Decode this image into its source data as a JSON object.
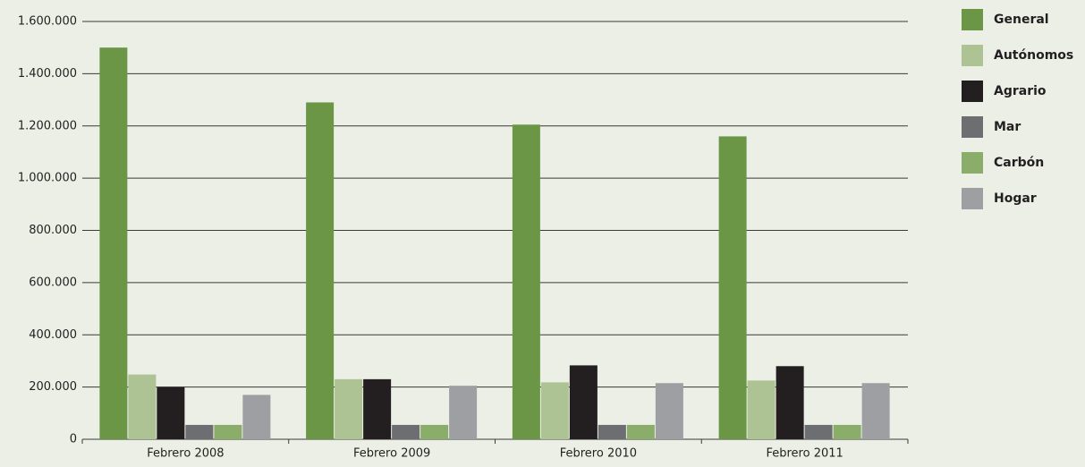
{
  "chart_data": {
    "type": "bar",
    "categories": [
      "Febrero 2008",
      "Febrero 2009",
      "Febrero 2010",
      "Febrero 2011"
    ],
    "series": [
      {
        "name": "General",
        "color": "#6a9646",
        "values": [
          1500000,
          1290000,
          1205000,
          1160000
        ]
      },
      {
        "name": "Autónomos",
        "color": "#adc393",
        "values": [
          248000,
          230000,
          218000,
          225000
        ]
      },
      {
        "name": "Agrario",
        "color": "#231f20",
        "values": [
          200000,
          230000,
          283000,
          280000
        ]
      },
      {
        "name": "Mar",
        "color": "#6d6e71",
        "values": [
          55000,
          55000,
          55000,
          55000
        ]
      },
      {
        "name": "Carbón",
        "color": "#8aad6a",
        "values": [
          55000,
          55000,
          55000,
          55000
        ]
      },
      {
        "name": "Hogar",
        "color": "#9d9fa2",
        "values": [
          170000,
          205000,
          215000,
          215000
        ]
      }
    ],
    "ylim": [
      0,
      1600000
    ],
    "yticks": [
      0,
      {
        "value": 200000,
        "label": "200.000"
      },
      {
        "value": 400000,
        "label": "400.000"
      },
      {
        "value": 600000,
        "label": "600.000"
      },
      {
        "value": 800000,
        "label": "800.000"
      },
      {
        "value": 1000000,
        "label": "1.000.000"
      },
      {
        "value": 1200000,
        "label": "1.200.000"
      },
      {
        "value": 1400000,
        "label": "1.400.000"
      },
      {
        "value": 1600000,
        "label": "1.600.000"
      }
    ],
    "grid": true,
    "legend": "right"
  }
}
